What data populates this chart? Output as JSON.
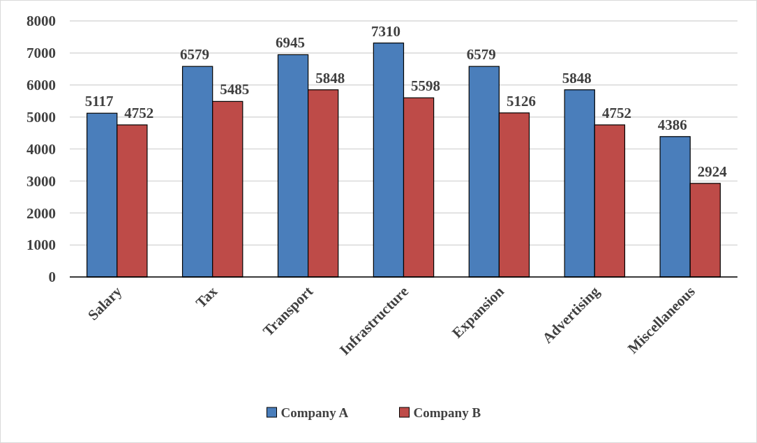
{
  "chart_data": {
    "type": "bar",
    "categories": [
      "Salary",
      "Tax",
      "Transport",
      "Infrastructure",
      "Expansion",
      "Advertising",
      "Miscellaneous"
    ],
    "series": [
      {
        "name": "Company A",
        "color": "#4a7ebb",
        "values": [
          5117,
          6579,
          6945,
          7310,
          6579,
          5848,
          4386
        ]
      },
      {
        "name": "Company B",
        "color": "#be4b48",
        "values": [
          4752,
          5485,
          5848,
          5598,
          5126,
          4752,
          2924
        ]
      }
    ],
    "ylim": [
      0,
      8000
    ],
    "yticks": [
      0,
      1000,
      2000,
      3000,
      4000,
      5000,
      6000,
      7000,
      8000
    ],
    "grid": "y",
    "legend": "bottom",
    "data_labels": true
  }
}
